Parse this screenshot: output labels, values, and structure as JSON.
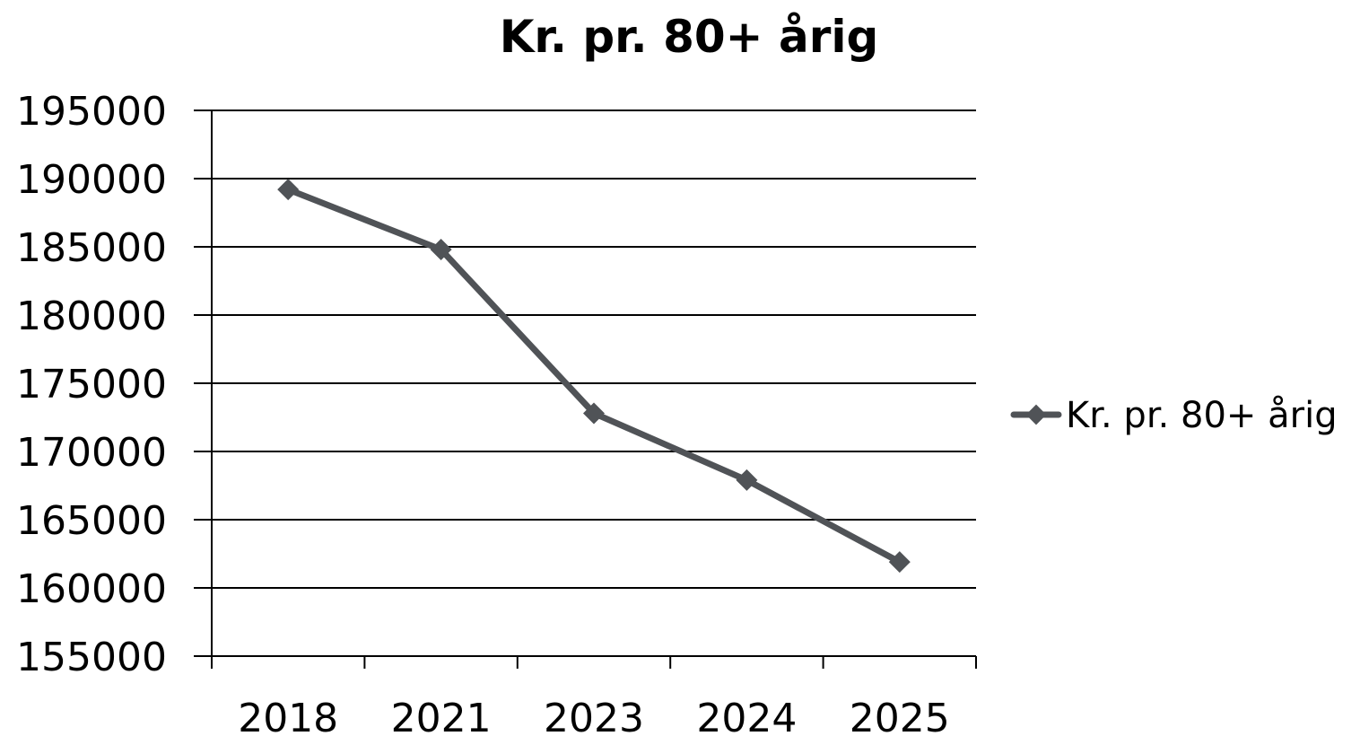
{
  "chart_data": {
    "type": "line",
    "title": "Kr. pr. 80+ årig",
    "xlabel": "",
    "ylabel": "",
    "categories": [
      "2018",
      "2021",
      "2023",
      "2024",
      "2025"
    ],
    "series": [
      {
        "name": "Kr. pr. 80+ årig",
        "values": [
          189200,
          184800,
          172800,
          167900,
          161900
        ],
        "color": "#505357",
        "marker": "diamond"
      }
    ],
    "ylim": [
      155000,
      195000
    ],
    "ytick_step": 5000,
    "yticks": [
      "195000",
      "190000",
      "185000",
      "180000",
      "175000",
      "170000",
      "165000",
      "160000",
      "155000"
    ],
    "grid": true,
    "legend_position": "right"
  }
}
